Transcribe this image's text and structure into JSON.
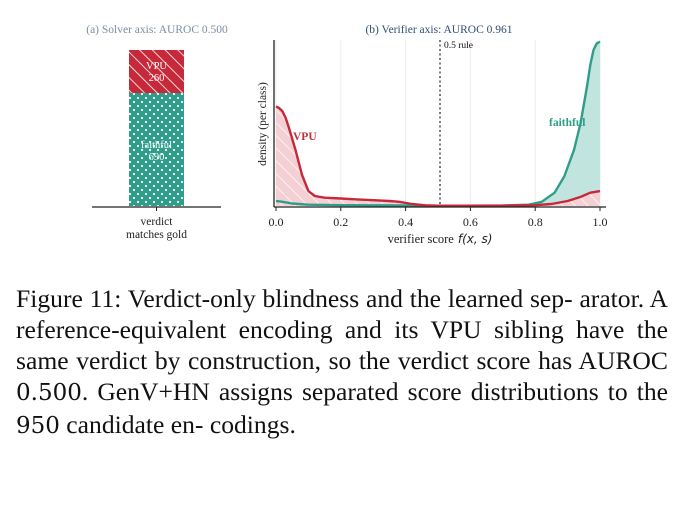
{
  "panel_a": {
    "title": "(a) Solver axis: AUROC 0.500",
    "x_label_line1": "verdict",
    "x_label_line2": "matches gold"
  },
  "panel_b": {
    "title": "(b) Verifier axis: AUROC 0.961",
    "rule_label": "0.5 rule",
    "x_label": "verifier score",
    "x_label_math": "f(x, s)",
    "y_label": "density (per class)"
  },
  "caption": {
    "prefix": "Figure 11: Verdict-only blindness and the learned sep-",
    "lines": [
      "Figure 11: Verdict-only blindness and the learned sep-",
      "arator. A reference-equivalent encoding and its VPU",
      "sibling have the same verdict by construction, so the",
      "verdict score has AUROC ",
      "0.500",
      ". GenV+HN assigns",
      "separated score distributions to the ",
      "950",
      " candidate en-",
      "codings."
    ]
  },
  "colors": {
    "vpu": "#c62a3a",
    "faithful": "#2e9e8a",
    "faithful_fill": "#bfe3dd",
    "vpu_fill": "#f4cfd3",
    "title": "#7a8ea5",
    "title_b": "#2f4f72"
  },
  "chart_data": [
    {
      "type": "bar",
      "stacked": true,
      "title": "(a) Solver axis: AUROC 0.500",
      "categories": [
        "verdict matches gold"
      ],
      "series": [
        {
          "name": "faithful",
          "values": [
            690
          ],
          "label": "faithful\n690"
        },
        {
          "name": "VPU",
          "values": [
            260
          ],
          "label": "VPU\n260"
        }
      ],
      "ylim": [
        0,
        1050
      ]
    },
    {
      "type": "area",
      "title": "(b) Verifier axis: AUROC 0.961",
      "xlabel": "verifier score f(x, s)",
      "ylabel": "density (per class)",
      "xlim": [
        0.0,
        1.0
      ],
      "xticks": [
        "0.0",
        "0.2",
        "0.4",
        "0.6",
        "0.8",
        "1.0"
      ],
      "ylim": [
        0,
        1.0
      ],
      "vline": {
        "x": 0.5,
        "label": "0.5 rule"
      },
      "series": [
        {
          "name": "VPU",
          "x": [
            0.0,
            0.01,
            0.02,
            0.03,
            0.04,
            0.06,
            0.08,
            0.1,
            0.12,
            0.15,
            0.2,
            0.25,
            0.3,
            0.35,
            0.38,
            0.42,
            0.46,
            0.5,
            0.6,
            0.7,
            0.8,
            0.85,
            0.9,
            0.94,
            0.97,
            1.0
          ],
          "y": [
            0.6,
            0.59,
            0.57,
            0.53,
            0.47,
            0.34,
            0.19,
            0.09,
            0.06,
            0.05,
            0.045,
            0.04,
            0.035,
            0.03,
            0.025,
            0.012,
            0.004,
            0.002,
            0.002,
            0.002,
            0.005,
            0.012,
            0.03,
            0.055,
            0.08,
            0.09
          ]
        },
        {
          "name": "faithful",
          "x": [
            0.0,
            0.02,
            0.05,
            0.1,
            0.2,
            0.3,
            0.4,
            0.5,
            0.6,
            0.7,
            0.78,
            0.82,
            0.86,
            0.89,
            0.92,
            0.94,
            0.96,
            0.97,
            0.98,
            0.99,
            1.0
          ],
          "y": [
            0.03,
            0.025,
            0.015,
            0.008,
            0.005,
            0.004,
            0.003,
            0.002,
            0.002,
            0.003,
            0.008,
            0.025,
            0.08,
            0.18,
            0.34,
            0.5,
            0.72,
            0.85,
            0.94,
            0.98,
            0.99
          ]
        }
      ],
      "series_labels": [
        "VPU",
        "faithful"
      ]
    }
  ]
}
